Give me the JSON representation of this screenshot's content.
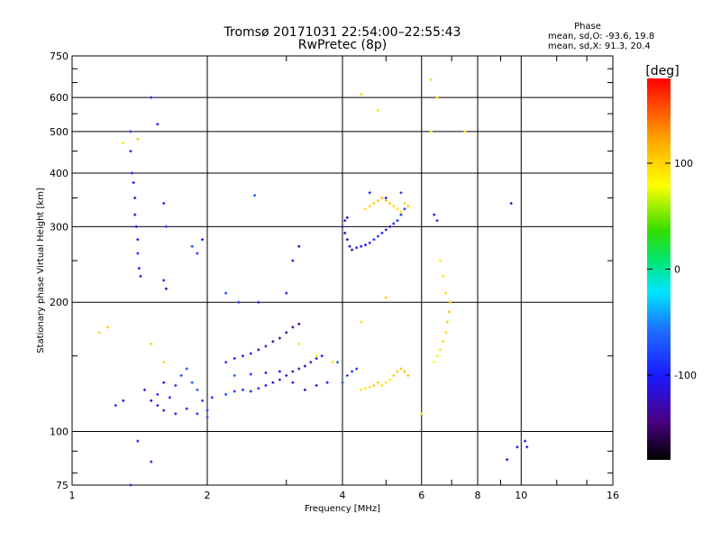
{
  "chart_data": {
    "type": "scatter",
    "title": "Tromsø 20171031 22:54:00–22:55:43",
    "subtitle": "RwPretec (8p)",
    "xlabel": "Frequency [MHz]",
    "ylabel": "Stationary phase Virtual Height [km]",
    "x_scale": "log",
    "y_scale": "log",
    "xlim": [
      1,
      16
    ],
    "ylim": [
      75,
      750
    ],
    "x_ticks": [
      1,
      2,
      4,
      6,
      8,
      10,
      16
    ],
    "x_tick_labels": [
      "1",
      "2",
      "4",
      "6",
      "8",
      "10",
      "16"
    ],
    "y_ticks": [
      75,
      100,
      200,
      300,
      400,
      500,
      600,
      750
    ],
    "y_tick_labels": [
      "75",
      "100",
      "200",
      "300",
      "400",
      "500",
      "600",
      "750"
    ],
    "grid": true,
    "stats": {
      "header": "Phase",
      "line_O": "mean, sd,O: -93.6, 19.8",
      "line_X": "mean, sd,X:  91.3, 20.4"
    },
    "colorbar": {
      "label": "[deg]",
      "range": [
        -180,
        180
      ],
      "tick_values": [
        100,
        0,
        -100
      ],
      "tick_labels": [
        "100",
        "0",
        "-100"
      ]
    },
    "series": [
      {
        "points": [
          [
            1.45,
            125,
            -100
          ],
          [
            1.5,
            118,
            -110
          ],
          [
            1.55,
            122,
            -95
          ],
          [
            1.6,
            130,
            -105
          ],
          [
            1.65,
            120,
            -100
          ],
          [
            1.7,
            128,
            -90
          ],
          [
            1.75,
            135,
            -85
          ],
          [
            1.8,
            140,
            -80
          ],
          [
            1.85,
            130,
            -75
          ],
          [
            1.9,
            125,
            -70
          ],
          [
            1.95,
            118,
            -80
          ],
          [
            2.0,
            112,
            -90
          ],
          [
            2.05,
            120,
            -95
          ],
          [
            1.55,
            115,
            -120
          ],
          [
            1.6,
            112,
            -115
          ],
          [
            1.7,
            110,
            -110
          ],
          [
            1.8,
            113,
            -100
          ],
          [
            1.9,
            110,
            -95
          ],
          [
            2.0,
            108,
            -85
          ],
          [
            2.2,
            145,
            -90
          ],
          [
            2.3,
            148,
            -100
          ],
          [
            2.4,
            150,
            -110
          ],
          [
            2.5,
            152,
            -115
          ],
          [
            2.6,
            155,
            -120
          ],
          [
            2.7,
            158,
            -125
          ],
          [
            2.8,
            162,
            -130
          ],
          [
            2.9,
            165,
            -135
          ],
          [
            3.0,
            170,
            -140
          ],
          [
            3.1,
            175,
            -145
          ],
          [
            3.2,
            178,
            -140
          ],
          [
            2.2,
            122,
            -80
          ],
          [
            2.3,
            124,
            -85
          ],
          [
            2.4,
            125,
            -90
          ],
          [
            2.5,
            124,
            -95
          ],
          [
            2.6,
            126,
            -100
          ],
          [
            2.7,
            128,
            -110
          ],
          [
            2.8,
            130,
            -115
          ],
          [
            2.9,
            132,
            -120
          ],
          [
            3.0,
            135,
            -125
          ],
          [
            3.1,
            138,
            -130
          ],
          [
            3.2,
            140,
            -125
          ],
          [
            3.3,
            142,
            -120
          ],
          [
            3.4,
            145,
            -115
          ],
          [
            3.5,
            148,
            -110
          ],
          [
            3.6,
            150,
            -100
          ],
          [
            2.3,
            135,
            -70
          ],
          [
            2.5,
            136,
            -90
          ],
          [
            2.7,
            137,
            -100
          ],
          [
            2.9,
            138,
            -105
          ],
          [
            3.1,
            130,
            -115
          ],
          [
            3.3,
            125,
            -120
          ],
          [
            3.5,
            128,
            -110
          ],
          [
            3.7,
            130,
            -105
          ],
          [
            4.0,
            130,
            -80
          ],
          [
            4.1,
            135,
            -85
          ],
          [
            4.2,
            138,
            -90
          ],
          [
            4.3,
            140,
            -95
          ],
          [
            3.9,
            145,
            -75
          ],
          [
            1.35,
            500,
            -90
          ],
          [
            1.35,
            450,
            -95
          ],
          [
            1.36,
            400,
            -100
          ],
          [
            1.37,
            380,
            -110
          ],
          [
            1.38,
            350,
            -115
          ],
          [
            1.38,
            320,
            -110
          ],
          [
            1.39,
            300,
            -105
          ],
          [
            1.4,
            280,
            -100
          ],
          [
            1.4,
            260,
            -95
          ],
          [
            1.41,
            240,
            -100
          ],
          [
            1.42,
            230,
            -105
          ],
          [
            1.5,
            600,
            -110
          ],
          [
            1.55,
            520,
            -100
          ],
          [
            1.6,
            340,
            -95
          ],
          [
            1.62,
            300,
            -90
          ],
          [
            1.6,
            225,
            -100
          ],
          [
            1.62,
            215,
            -110
          ],
          [
            4.0,
            300,
            -120
          ],
          [
            4.05,
            290,
            -130
          ],
          [
            4.1,
            280,
            -125
          ],
          [
            4.15,
            270,
            -120
          ],
          [
            4.2,
            265,
            -115
          ],
          [
            4.3,
            268,
            -110
          ],
          [
            4.4,
            270,
            -105
          ],
          [
            4.5,
            272,
            -100
          ],
          [
            4.6,
            275,
            -95
          ],
          [
            4.7,
            280,
            -90
          ],
          [
            4.8,
            285,
            -95
          ],
          [
            4.9,
            290,
            -100
          ],
          [
            5.0,
            295,
            -105
          ],
          [
            5.1,
            300,
            -110
          ],
          [
            5.2,
            305,
            -100
          ],
          [
            5.3,
            310,
            -95
          ],
          [
            5.4,
            320,
            -90
          ],
          [
            5.5,
            330,
            -85
          ],
          [
            4.05,
            310,
            -120
          ],
          [
            4.1,
            315,
            -110
          ],
          [
            4.6,
            360,
            -100
          ],
          [
            5.0,
            350,
            -95
          ],
          [
            5.4,
            360,
            -90
          ],
          [
            2.55,
            355,
            -75
          ],
          [
            2.2,
            210,
            -80
          ],
          [
            2.35,
            200,
            -90
          ],
          [
            2.6,
            200,
            -100
          ],
          [
            3.0,
            210,
            -110
          ],
          [
            3.1,
            250,
            -120
          ],
          [
            3.2,
            270,
            -130
          ],
          [
            1.85,
            270,
            -80
          ],
          [
            1.9,
            260,
            -90
          ],
          [
            1.95,
            280,
            -100
          ],
          [
            6.4,
            320,
            -100
          ],
          [
            6.5,
            310,
            -95
          ],
          [
            9.5,
            340,
            -110
          ],
          [
            1.3,
            118,
            -100
          ],
          [
            1.25,
            115,
            -95
          ],
          [
            1.4,
            95,
            -110
          ],
          [
            1.35,
            75,
            -120
          ],
          [
            10.3,
            92,
            -100
          ],
          [
            9.8,
            92,
            -110
          ],
          [
            10.2,
            95,
            -105
          ],
          [
            9.3,
            86,
            -110
          ],
          [
            1.5,
            85,
            -100
          ]
        ]
      },
      {
        "points": [
          [
            4.4,
            125,
            90
          ],
          [
            4.5,
            126,
            95
          ],
          [
            4.6,
            127,
            100
          ],
          [
            4.7,
            128,
            105
          ],
          [
            4.8,
            130,
            100
          ],
          [
            4.9,
            128,
            95
          ],
          [
            5.0,
            130,
            90
          ],
          [
            5.1,
            132,
            95
          ],
          [
            5.2,
            135,
            100
          ],
          [
            5.3,
            138,
            105
          ],
          [
            5.4,
            140,
            110
          ],
          [
            5.5,
            138,
            115
          ],
          [
            5.6,
            135,
            110
          ],
          [
            4.5,
            330,
            95
          ],
          [
            4.6,
            335,
            100
          ],
          [
            4.7,
            340,
            105
          ],
          [
            4.8,
            345,
            110
          ],
          [
            4.9,
            350,
            115
          ],
          [
            5.0,
            345,
            110
          ],
          [
            5.1,
            340,
            105
          ],
          [
            5.2,
            335,
            100
          ],
          [
            5.3,
            330,
            95
          ],
          [
            5.4,
            325,
            90
          ],
          [
            5.5,
            340,
            100
          ],
          [
            5.6,
            335,
            105
          ],
          [
            6.4,
            145,
            80
          ],
          [
            6.5,
            150,
            85
          ],
          [
            6.6,
            155,
            90
          ],
          [
            6.7,
            162,
            95
          ],
          [
            6.8,
            170,
            100
          ],
          [
            6.85,
            180,
            105
          ],
          [
            6.9,
            190,
            110
          ],
          [
            6.95,
            200,
            115
          ],
          [
            6.8,
            210,
            100
          ],
          [
            6.7,
            230,
            95
          ],
          [
            6.6,
            250,
            90
          ],
          [
            6.3,
            660,
            100
          ],
          [
            6.5,
            600,
            95
          ],
          [
            6.3,
            500,
            90
          ],
          [
            7.5,
            500,
            95
          ],
          [
            4.4,
            610,
            95
          ],
          [
            4.8,
            560,
            90
          ],
          [
            1.15,
            170,
            95
          ],
          [
            1.2,
            175,
            100
          ],
          [
            1.5,
            160,
            105
          ],
          [
            1.6,
            145,
            100
          ],
          [
            1.3,
            470,
            95
          ],
          [
            1.4,
            480,
            110
          ],
          [
            3.2,
            160,
            90
          ],
          [
            3.5,
            150,
            85
          ],
          [
            3.8,
            145,
            95
          ],
          [
            5.0,
            205,
            100
          ],
          [
            6.0,
            110,
            90
          ],
          [
            4.4,
            180,
            95
          ]
        ]
      }
    ]
  }
}
